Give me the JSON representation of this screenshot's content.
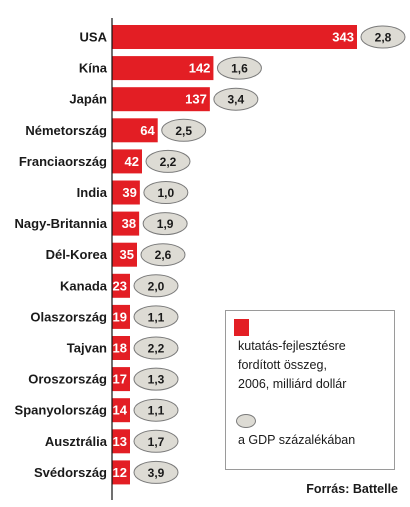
{
  "colors": {
    "bar": "#e31e24",
    "ellipse": "#dddbd4",
    "ellipse_border": "#7a7a7a",
    "axis": "#111111"
  },
  "chart_data": {
    "type": "bar",
    "orientation": "horizontal",
    "categories": [
      "USA",
      "Kína",
      "Japán",
      "Németország",
      "Franciaország",
      "India",
      "Nagy-Britannia",
      "Dél-Korea",
      "Kanada",
      "Olaszország",
      "Tajvan",
      "Oroszország",
      "Spanyolország",
      "Ausztrália",
      "Svédország"
    ],
    "series": [
      {
        "values": [
          343,
          142,
          137,
          64,
          42,
          39,
          38,
          35,
          23,
          19,
          18,
          17,
          14,
          13,
          12
        ]
      },
      {
        "values": [
          "2,8",
          "1,6",
          "3,4",
          "2,5",
          "2,2",
          "1,0",
          "1,9",
          "2,6",
          "2,0",
          "1,1",
          "2,2",
          "1,3",
          "1,1",
          "1,7",
          "3,9"
        ]
      }
    ]
  },
  "legend": {
    "spending_label": "kutatás-fejlesztésre fordított összeg, 2006, milliárd dollár",
    "spending_lines": [
      "kutatás-fejlesztésre",
      "fordított összeg,",
      "2006, milliárd dollár"
    ],
    "gdp_label": "a GDP százalékában"
  },
  "source": "Forrás: Battelle"
}
